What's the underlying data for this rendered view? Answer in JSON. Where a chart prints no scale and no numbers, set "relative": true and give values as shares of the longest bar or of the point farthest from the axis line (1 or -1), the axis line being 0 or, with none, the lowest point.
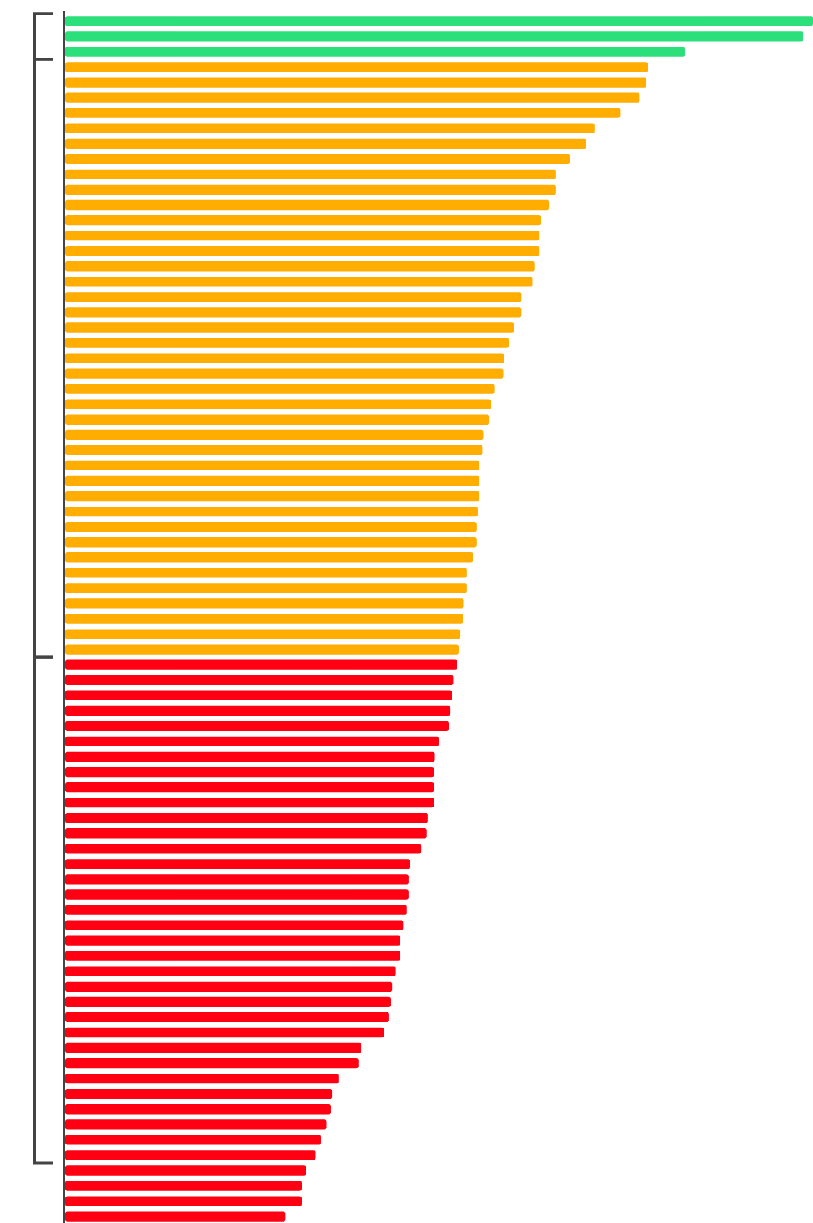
{
  "chart_data": {
    "type": "bar",
    "orientation": "horizontal",
    "relative": true,
    "categories": [
      null,
      null,
      null,
      null,
      null,
      null,
      null,
      null,
      null,
      null,
      null,
      null,
      null,
      null,
      null,
      null,
      null,
      null,
      null,
      null,
      null,
      null,
      null,
      null,
      null,
      null,
      null,
      null,
      null,
      null,
      null,
      null,
      null,
      null,
      null,
      null,
      null,
      null,
      null,
      null,
      null,
      null,
      null,
      null,
      null,
      null,
      null,
      null,
      null,
      null,
      null,
      null,
      null,
      null,
      null,
      null,
      null,
      null,
      null,
      null,
      null,
      null,
      null,
      null,
      null,
      null,
      null,
      null,
      null,
      null,
      null,
      null,
      null,
      null,
      null,
      null,
      null,
      null,
      null
    ],
    "values": [
      1,
      0.987,
      0.829,
      0.779,
      0.777,
      0.768,
      0.742,
      0.708,
      0.697,
      0.675,
      0.656,
      0.656,
      0.647,
      0.636,
      0.634,
      0.634,
      0.628,
      0.625,
      0.61,
      0.61,
      0.6,
      0.593,
      0.587,
      0.586,
      0.574,
      0.569,
      0.567,
      0.559,
      0.558,
      0.554,
      0.554,
      0.554,
      0.552,
      0.55,
      0.55,
      0.545,
      0.537,
      0.537,
      0.533,
      0.532,
      0.528,
      0.526,
      0.524,
      0.519,
      0.517,
      0.515,
      0.513,
      0.5,
      0.494,
      0.493,
      0.493,
      0.493,
      0.485,
      0.483,
      0.476,
      0.461,
      0.459,
      0.459,
      0.457,
      0.452,
      0.448,
      0.448,
      0.442,
      0.437,
      0.435,
      0.433,
      0.426,
      0.396,
      0.392,
      0.366,
      0.357,
      0.355,
      0.349,
      0.342,
      0.335,
      0.322,
      0.316,
      0.316,
      0.294
    ],
    "colors": [
      "#2be07a",
      "#2be07a",
      "#2be07a",
      "#ffad00",
      "#ffad00",
      "#ffad00",
      "#ffad00",
      "#ffad00",
      "#ffad00",
      "#ffad00",
      "#ffad00",
      "#ffad00",
      "#ffad00",
      "#ffad00",
      "#ffad00",
      "#ffad00",
      "#ffad00",
      "#ffad00",
      "#ffad00",
      "#ffad00",
      "#ffad00",
      "#ffad00",
      "#ffad00",
      "#ffad00",
      "#ffad00",
      "#ffad00",
      "#ffad00",
      "#ffad00",
      "#ffad00",
      "#ffad00",
      "#ffad00",
      "#ffad00",
      "#ffad00",
      "#ffad00",
      "#ffad00",
      "#ffad00",
      "#ffad00",
      "#ffad00",
      "#ffad00",
      "#ffad00",
      "#ffad00",
      "#ffad00",
      "#ff0013",
      "#ff0013",
      "#ff0013",
      "#ff0013",
      "#ff0013",
      "#ff0013",
      "#ff0013",
      "#ff0013",
      "#ff0013",
      "#ff0013",
      "#ff0013",
      "#ff0013",
      "#ff0013",
      "#ff0013",
      "#ff0013",
      "#ff0013",
      "#ff0013",
      "#ff0013",
      "#ff0013",
      "#ff0013",
      "#ff0013",
      "#ff0013",
      "#ff0013",
      "#ff0013",
      "#ff0013",
      "#ff0013",
      "#ff0013",
      "#ff0013",
      "#ff0013",
      "#ff0013",
      "#ff0013",
      "#ff0013",
      "#ff0013",
      "#ff0013",
      "#ff0013",
      "#ff0013",
      "#ff0013"
    ]
  }
}
